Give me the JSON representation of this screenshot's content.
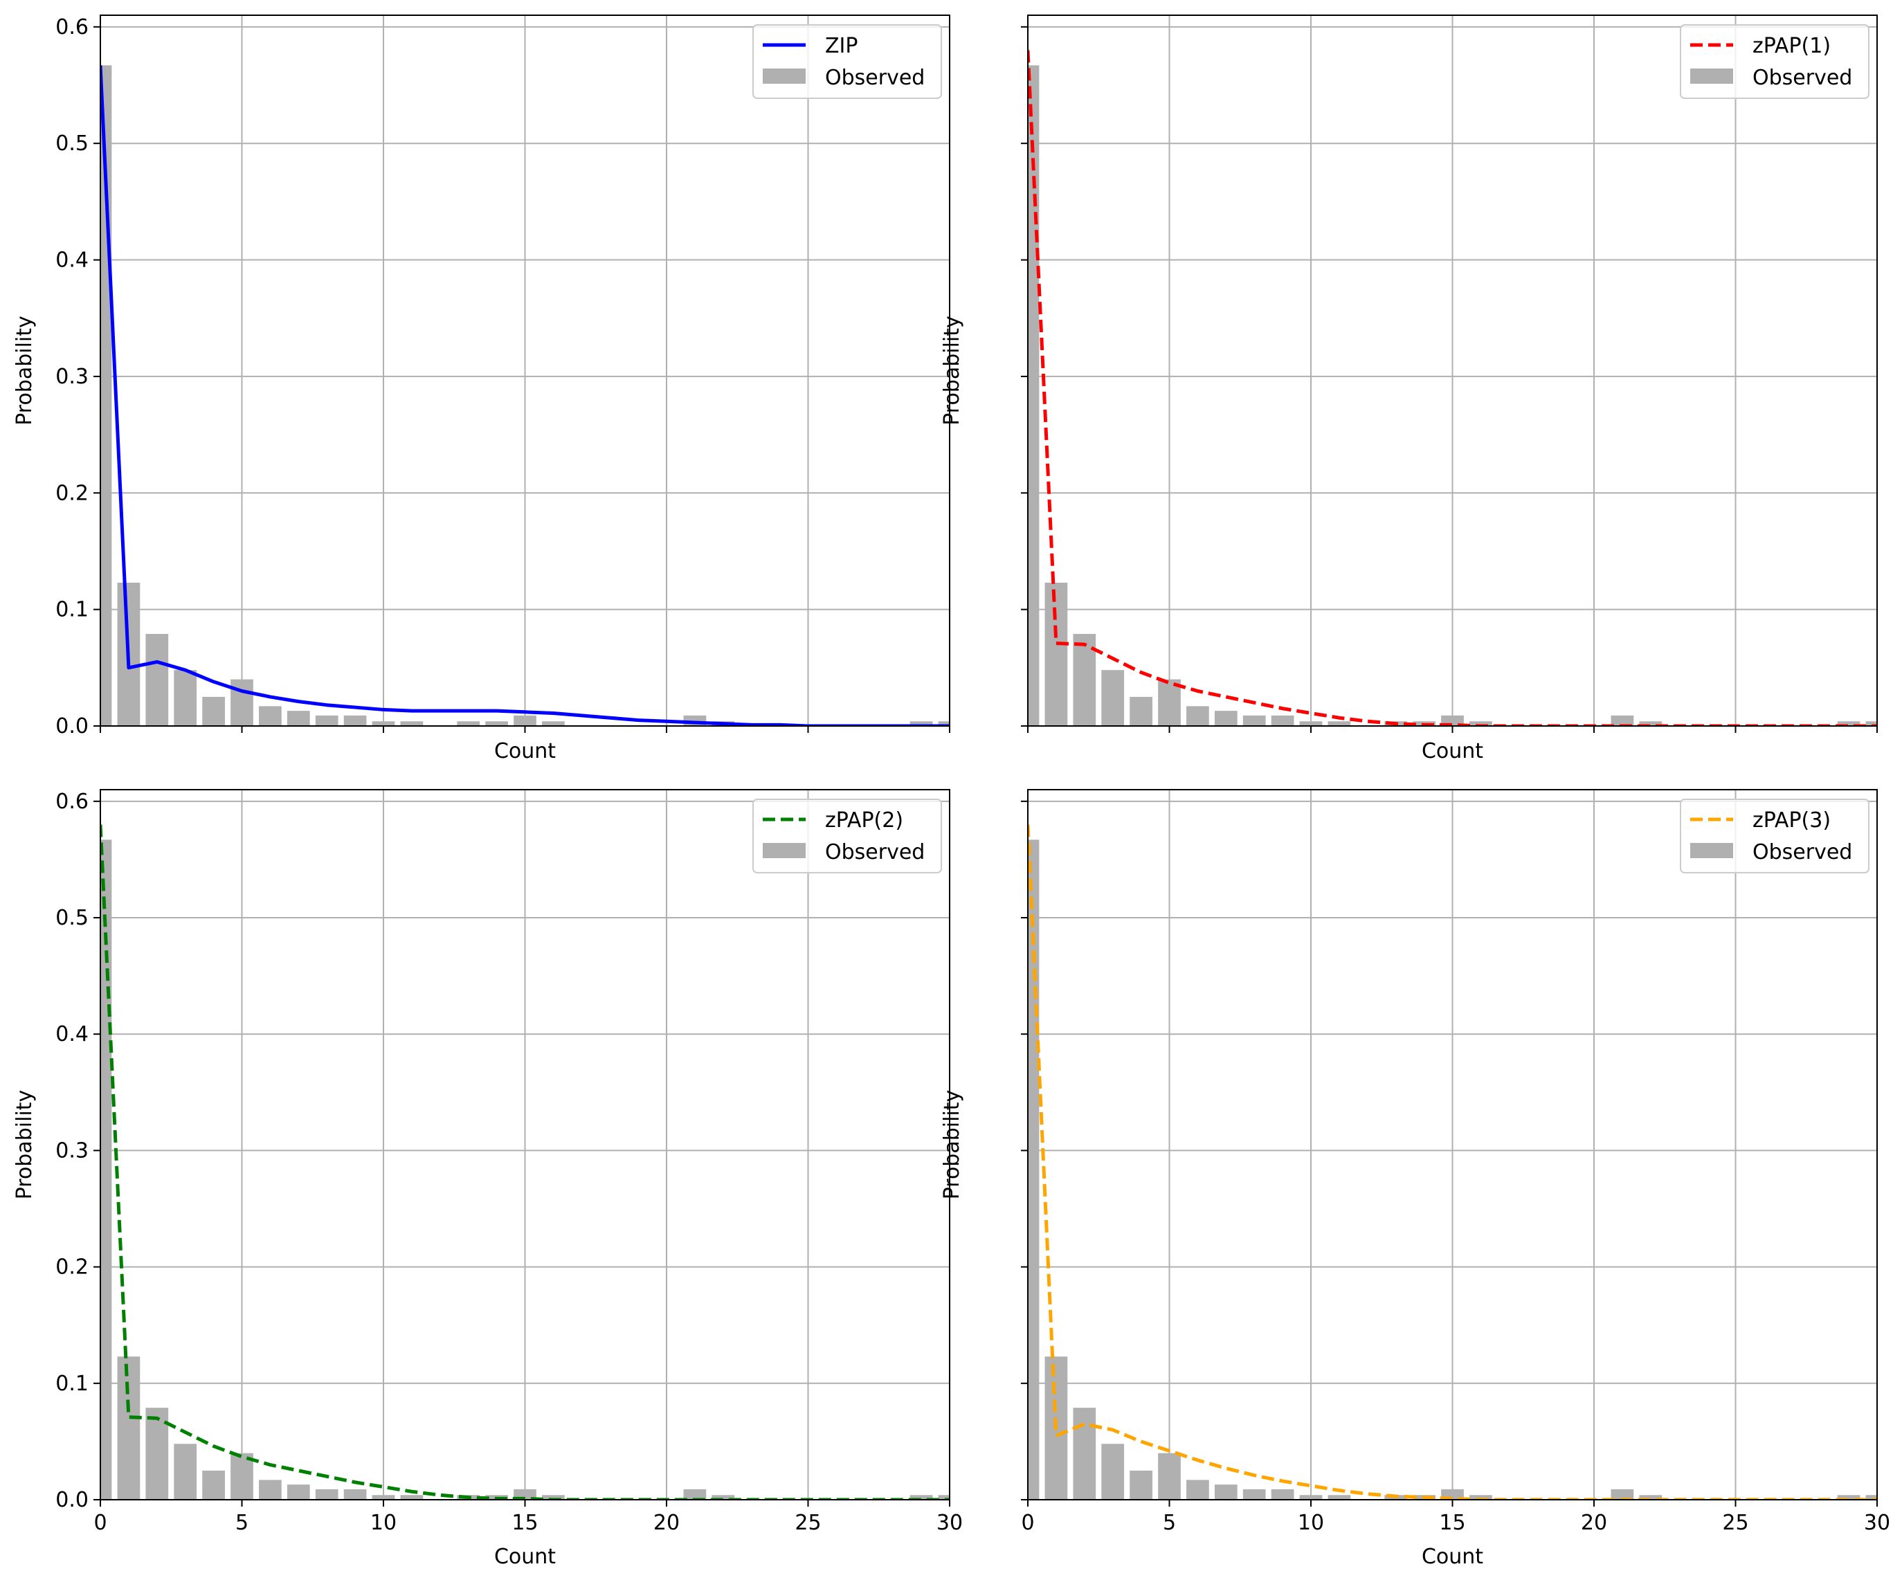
{
  "figure": {
    "background": "#ffffff",
    "grid_color": "#b0b0b0",
    "bar_color": "#b0b0b0"
  },
  "observed": {
    "label": "Observed",
    "counts": [
      0,
      1,
      2,
      3,
      4,
      5,
      6,
      7,
      8,
      9,
      10,
      11,
      12,
      13,
      14,
      15,
      16,
      17,
      18,
      19,
      20,
      21,
      22,
      23,
      24,
      25,
      26,
      27,
      28,
      29,
      30
    ],
    "values": [
      0.567,
      0.123,
      0.079,
      0.048,
      0.025,
      0.04,
      0.017,
      0.013,
      0.009,
      0.009,
      0.004,
      0.004,
      0.0,
      0.004,
      0.004,
      0.009,
      0.004,
      0.0,
      0.0,
      0.0,
      0.0,
      0.009,
      0.004,
      0.0,
      0.0,
      0.0,
      0.0,
      0.0,
      0.0,
      0.004,
      0.004
    ]
  },
  "chart_data": [
    {
      "type": "bar",
      "xlabel": "Count",
      "ylabel": "Probability",
      "xlim": [
        0,
        30
      ],
      "ylim": [
        0,
        0.61
      ],
      "xticks": [
        "0",
        "5",
        "10",
        "15",
        "20",
        "25",
        "30"
      ],
      "yticks": [
        "0.0",
        "0.1",
        "0.2",
        "0.3",
        "0.4",
        "0.5",
        "0.6"
      ],
      "show_xtick_labels": false,
      "show_ytick_labels": true,
      "grid": true,
      "legend_position": "top-right",
      "series": [
        {
          "name": "ZIP",
          "kind": "line",
          "style": "solid",
          "color": "#0000ff",
          "x": [
            0,
            1,
            2,
            3,
            4,
            5,
            6,
            7,
            8,
            9,
            10,
            11,
            12,
            13,
            14,
            15,
            16,
            17,
            18,
            19,
            20,
            21,
            22,
            23,
            24,
            25,
            26,
            27,
            28,
            29,
            30
          ],
          "values": [
            0.567,
            0.05,
            0.055,
            0.048,
            0.038,
            0.03,
            0.025,
            0.021,
            0.018,
            0.016,
            0.014,
            0.013,
            0.013,
            0.013,
            0.013,
            0.012,
            0.011,
            0.009,
            0.007,
            0.005,
            0.004,
            0.003,
            0.002,
            0.001,
            0.001,
            0.0,
            0.0,
            0.0,
            0.0,
            0.0,
            0.0
          ]
        },
        {
          "name": "Observed",
          "kind": "bar",
          "color": "#b0b0b0"
        }
      ]
    },
    {
      "type": "bar",
      "xlabel": "Count",
      "ylabel": "Probability",
      "xlim": [
        0,
        30
      ],
      "ylim": [
        0,
        0.61
      ],
      "xticks": [
        "0",
        "5",
        "10",
        "15",
        "20",
        "25",
        "30"
      ],
      "yticks": [
        "0.0",
        "0.1",
        "0.2",
        "0.3",
        "0.4",
        "0.5",
        "0.6"
      ],
      "show_xtick_labels": false,
      "show_ytick_labels": false,
      "grid": true,
      "legend_position": "top-right",
      "series": [
        {
          "name": "zPAP(1)",
          "kind": "line",
          "style": "dashed",
          "color": "#ff0000",
          "x": [
            0,
            1,
            2,
            3,
            4,
            5,
            6,
            7,
            8,
            9,
            10,
            11,
            12,
            13,
            14,
            15,
            16,
            17,
            18,
            19,
            20,
            21,
            22,
            23,
            24,
            25,
            26,
            27,
            28,
            29,
            30
          ],
          "values": [
            0.58,
            0.071,
            0.07,
            0.058,
            0.046,
            0.037,
            0.03,
            0.025,
            0.02,
            0.015,
            0.011,
            0.007,
            0.004,
            0.002,
            0.001,
            0.001,
            0.0,
            0.0,
            0.0,
            0.0,
            0.0,
            0.0,
            0.0,
            0.0,
            0.0,
            0.0,
            0.0,
            0.0,
            0.0,
            0.0,
            0.0
          ]
        },
        {
          "name": "Observed",
          "kind": "bar",
          "color": "#b0b0b0"
        }
      ]
    },
    {
      "type": "bar",
      "xlabel": "Count",
      "ylabel": "Probability",
      "xlim": [
        0,
        30
      ],
      "ylim": [
        0,
        0.61
      ],
      "xticks": [
        "0",
        "5",
        "10",
        "15",
        "20",
        "25",
        "30"
      ],
      "yticks": [
        "0.0",
        "0.1",
        "0.2",
        "0.3",
        "0.4",
        "0.5",
        "0.6"
      ],
      "show_xtick_labels": true,
      "show_ytick_labels": true,
      "grid": true,
      "legend_position": "top-right",
      "series": [
        {
          "name": "zPAP(2)",
          "kind": "line",
          "style": "dashed",
          "color": "#008000",
          "x": [
            0,
            1,
            2,
            3,
            4,
            5,
            6,
            7,
            8,
            9,
            10,
            11,
            12,
            13,
            14,
            15,
            16,
            17,
            18,
            19,
            20,
            21,
            22,
            23,
            24,
            25,
            26,
            27,
            28,
            29,
            30
          ],
          "values": [
            0.58,
            0.071,
            0.07,
            0.058,
            0.046,
            0.037,
            0.03,
            0.025,
            0.02,
            0.015,
            0.011,
            0.007,
            0.004,
            0.002,
            0.001,
            0.001,
            0.0,
            0.0,
            0.0,
            0.0,
            0.0,
            0.0,
            0.0,
            0.0,
            0.0,
            0.0,
            0.0,
            0.0,
            0.0,
            0.0,
            0.0
          ]
        },
        {
          "name": "Observed",
          "kind": "bar",
          "color": "#b0b0b0"
        }
      ]
    },
    {
      "type": "bar",
      "xlabel": "Count",
      "ylabel": "Probability",
      "xlim": [
        0,
        30
      ],
      "ylim": [
        0,
        0.61
      ],
      "xticks": [
        "0",
        "5",
        "10",
        "15",
        "20",
        "25",
        "30"
      ],
      "yticks": [
        "0.0",
        "0.1",
        "0.2",
        "0.3",
        "0.4",
        "0.5",
        "0.6"
      ],
      "show_xtick_labels": true,
      "show_ytick_labels": false,
      "grid": true,
      "legend_position": "top-right",
      "series": [
        {
          "name": "zPAP(3)",
          "kind": "line",
          "style": "dashed",
          "color": "#ffa500",
          "x": [
            0,
            1,
            2,
            3,
            4,
            5,
            6,
            7,
            8,
            9,
            10,
            11,
            12,
            13,
            14,
            15,
            16,
            17,
            18,
            19,
            20,
            21,
            22,
            23,
            24,
            25,
            26,
            27,
            28,
            29,
            30
          ],
          "values": [
            0.58,
            0.055,
            0.065,
            0.06,
            0.05,
            0.042,
            0.034,
            0.027,
            0.021,
            0.016,
            0.012,
            0.008,
            0.005,
            0.003,
            0.002,
            0.001,
            0.0,
            0.0,
            0.0,
            0.0,
            0.0,
            0.0,
            0.0,
            0.0,
            0.0,
            0.0,
            0.0,
            0.0,
            0.0,
            0.0,
            0.0
          ]
        },
        {
          "name": "Observed",
          "kind": "bar",
          "color": "#b0b0b0"
        }
      ]
    }
  ]
}
